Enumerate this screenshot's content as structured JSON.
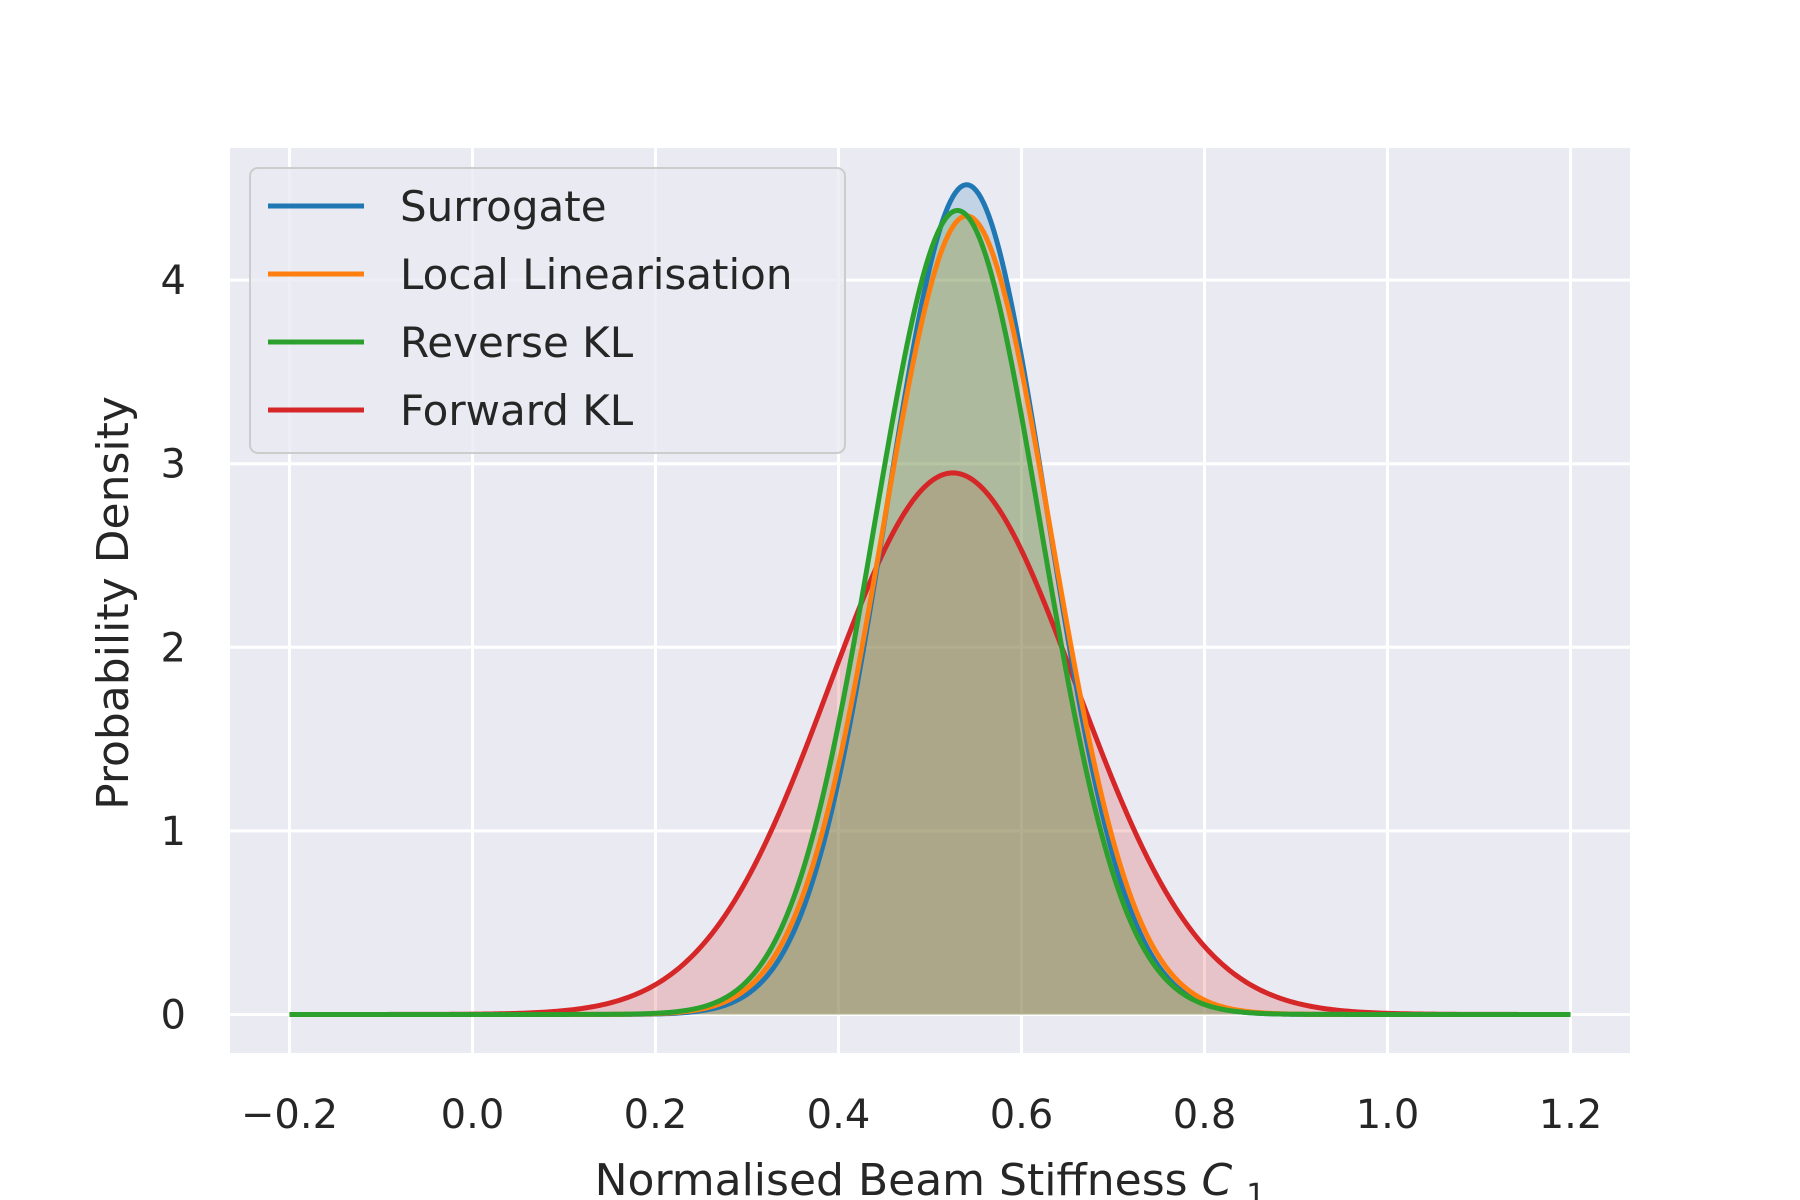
{
  "chart_data": {
    "type": "line",
    "title": "",
    "xlabel": "Normalised Beam Stiffness",
    "xlabel_symbol": "C",
    "xlabel_subscript": "1",
    "ylabel": "Probability Density",
    "xlim": [
      -0.265,
      1.265
    ],
    "ylim": [
      -0.21,
      4.72
    ],
    "x_ticks": [
      -0.2,
      0.0,
      0.2,
      0.4,
      0.6,
      0.8,
      1.0,
      1.2
    ],
    "x_tick_labels": [
      "−0.2",
      "0.0",
      "0.2",
      "0.4",
      "0.6",
      "0.8",
      "1.0",
      "1.2"
    ],
    "y_ticks": [
      0,
      1,
      2,
      3,
      4
    ],
    "y_tick_labels": [
      "0",
      "1",
      "2",
      "3",
      "4"
    ],
    "grid": true,
    "legend_position": "top-left",
    "x_range": [
      -0.2,
      1.2
    ],
    "series": [
      {
        "name": "Surrogate",
        "color": "#1f77b4",
        "peak_x": 0.54,
        "peak_y": 4.52,
        "spread": 0.088
      },
      {
        "name": "Local Linearisation",
        "color": "#ff7f0e",
        "peak_x": 0.54,
        "peak_y": 4.35,
        "spread": 0.0917
      },
      {
        "name": "Reverse KL",
        "color": "#2ca02c",
        "peak_x": 0.53,
        "peak_y": 4.38,
        "spread": 0.0911
      },
      {
        "name": "Forward KL",
        "color": "#d62728",
        "peak_x": 0.525,
        "peak_y": 2.95,
        "spread": 0.135
      }
    ]
  }
}
